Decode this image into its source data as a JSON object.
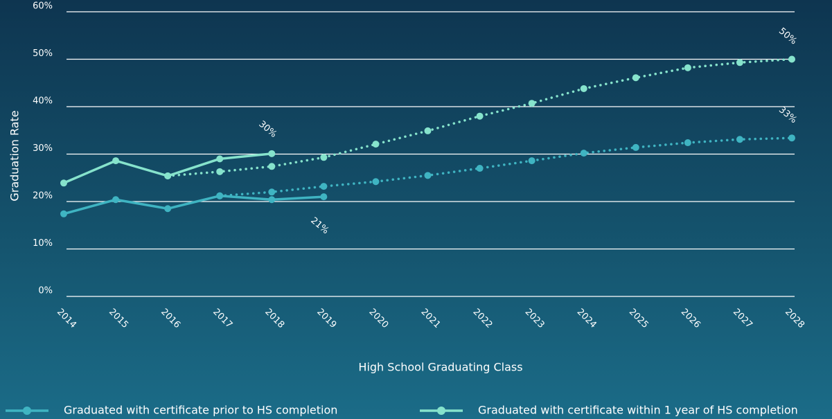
{
  "chart_data": {
    "type": "line",
    "y_label": "Graduation Rate",
    "x_label": "High School Graduating Class",
    "categories": [
      "2014",
      "2015",
      "2016",
      "2017",
      "2018",
      "2019",
      "2020",
      "2021",
      "2022",
      "2023",
      "2024",
      "2025",
      "2026",
      "2027",
      "2028"
    ],
    "ylim": [
      0,
      60
    ],
    "yticks": [
      {
        "value": 0,
        "label": "0%"
      },
      {
        "value": 10,
        "label": "10%"
      },
      {
        "value": 20,
        "label": "20%"
      },
      {
        "value": 30,
        "label": "30%"
      },
      {
        "value": 40,
        "label": "40%"
      },
      {
        "value": 50,
        "label": "50%"
      },
      {
        "value": 60,
        "label": "60%"
      }
    ],
    "grid": true,
    "legend": "bottom",
    "series": [
      {
        "name": "Graduated with certificate prior to HS completion",
        "color": "#3fb4c2",
        "values": [
          17.4,
          20.4,
          18.5,
          21.2,
          20.4,
          21.0,
          null,
          null,
          null,
          null,
          null,
          null,
          null,
          null,
          null
        ],
        "value_labels": [
          null,
          null,
          null,
          null,
          null,
          "21%",
          null,
          null,
          null,
          null,
          null,
          null,
          null,
          null,
          null
        ],
        "projection": [
          null,
          null,
          null,
          21.2,
          22.0,
          23.2,
          24.2,
          25.5,
          27.0,
          28.6,
          30.2,
          31.4,
          32.4,
          33.1,
          33.4
        ],
        "projection_labels": [
          null,
          null,
          null,
          null,
          null,
          null,
          null,
          null,
          null,
          null,
          null,
          null,
          null,
          null,
          "33%"
        ]
      },
      {
        "name": "Graduated with certificate within 1 year of HS completion",
        "color": "#86e3cc",
        "values": [
          23.9,
          28.6,
          25.4,
          29.0,
          30.1,
          null,
          null,
          null,
          null,
          null,
          null,
          null,
          null,
          null,
          null
        ],
        "value_labels": [
          null,
          null,
          null,
          null,
          "30%",
          null,
          null,
          null,
          null,
          null,
          null,
          null,
          null,
          null,
          null
        ],
        "projection": [
          null,
          null,
          25.4,
          26.3,
          27.4,
          29.3,
          32.1,
          34.9,
          38.0,
          40.7,
          43.8,
          46.1,
          48.2,
          49.3,
          50.0
        ],
        "projection_labels": [
          null,
          null,
          null,
          null,
          null,
          null,
          null,
          null,
          null,
          null,
          null,
          null,
          null,
          null,
          "50%"
        ]
      }
    ]
  }
}
